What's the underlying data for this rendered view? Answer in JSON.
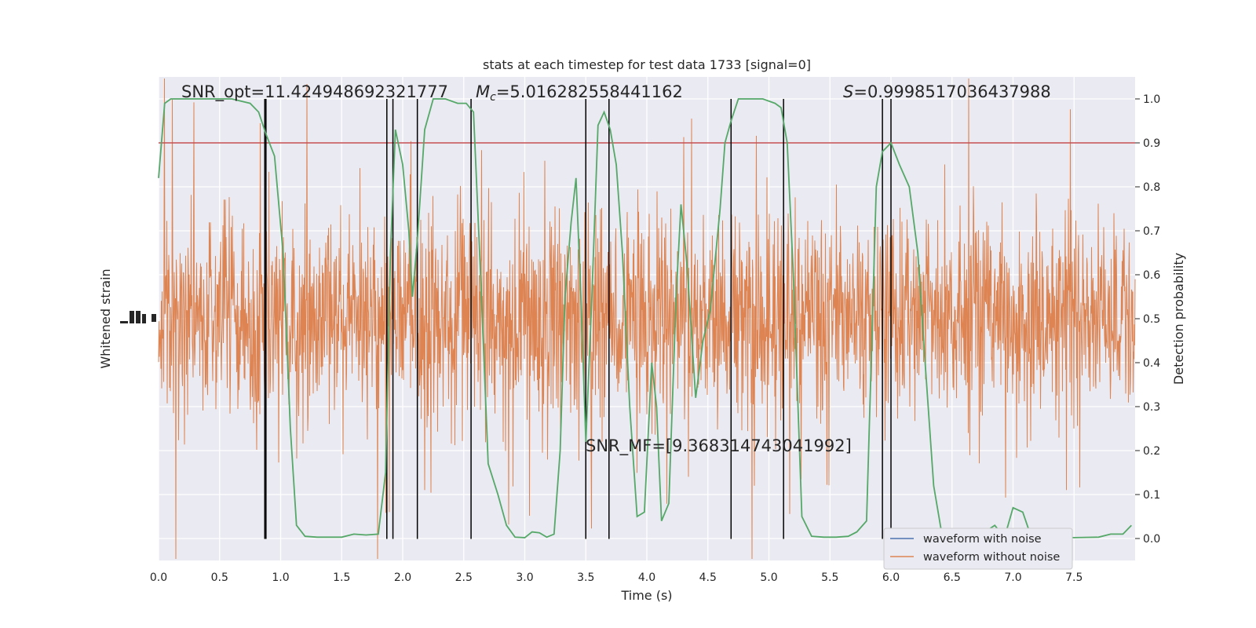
{
  "chart_data": {
    "type": "line",
    "title": "stats at each timestep for test data 1733 [signal=0]",
    "xlabel": "Time (s)",
    "ylabel_left": "Whitened strain",
    "ylabel_right": "Detection probability",
    "xlim": [
      0,
      8
    ],
    "ylim_right": [
      -0.05,
      1.05
    ],
    "x_ticks": [
      "0.0",
      "0.5",
      "1.0",
      "1.5",
      "2.0",
      "2.5",
      "3.0",
      "3.5",
      "4.0",
      "4.5",
      "5.0",
      "5.5",
      "6.0",
      "6.5",
      "7.0",
      "7.5"
    ],
    "y_ticks_right": [
      "0.0",
      "0.1",
      "0.2",
      "0.3",
      "0.4",
      "0.5",
      "0.6",
      "0.7",
      "0.8",
      "0.9",
      "1.0"
    ],
    "threshold": 0.9,
    "annotations": {
      "snr_opt": "SNR_opt=11.424948692321777",
      "mc_symbol": "M",
      "mc_sub": "c",
      "mc_value": "=5.016282558441162",
      "s_symbol": "S",
      "s_value": "=0.9998517036437988",
      "snr_mf": "SNR_MF=[9.368314743041992]"
    },
    "vertical_lines": [
      0.87,
      0.88,
      1.87,
      1.92,
      2.12,
      2.56,
      3.5,
      3.69,
      4.69,
      5.12,
      5.93,
      6.0
    ],
    "series": [
      {
        "name": "waveform with noise",
        "color": "#4c72b0"
      },
      {
        "name": "waveform without noise",
        "color": "#dd8452"
      }
    ],
    "probability_color": "#55a868",
    "threshold_color": "#c44e52",
    "probability": [
      [
        0.0,
        0.82
      ],
      [
        0.05,
        0.99
      ],
      [
        0.1,
        1.0
      ],
      [
        0.2,
        1.0
      ],
      [
        0.4,
        1.0
      ],
      [
        0.6,
        1.0
      ],
      [
        0.75,
        0.99
      ],
      [
        0.82,
        0.97
      ],
      [
        0.88,
        0.92
      ],
      [
        0.95,
        0.87
      ],
      [
        1.02,
        0.65
      ],
      [
        1.08,
        0.25
      ],
      [
        1.13,
        0.03
      ],
      [
        1.2,
        0.005
      ],
      [
        1.3,
        0.003
      ],
      [
        1.5,
        0.003
      ],
      [
        1.6,
        0.01
      ],
      [
        1.7,
        0.008
      ],
      [
        1.8,
        0.01
      ],
      [
        1.86,
        0.15
      ],
      [
        1.9,
        0.65
      ],
      [
        1.94,
        0.93
      ],
      [
        2.0,
        0.85
      ],
      [
        2.05,
        0.7
      ],
      [
        2.08,
        0.55
      ],
      [
        2.12,
        0.68
      ],
      [
        2.18,
        0.93
      ],
      [
        2.25,
        1.0
      ],
      [
        2.35,
        1.0
      ],
      [
        2.45,
        0.99
      ],
      [
        2.52,
        0.99
      ],
      [
        2.58,
        0.97
      ],
      [
        2.63,
        0.65
      ],
      [
        2.7,
        0.17
      ],
      [
        2.78,
        0.1
      ],
      [
        2.85,
        0.03
      ],
      [
        2.92,
        0.003
      ],
      [
        3.0,
        0.002
      ],
      [
        3.06,
        0.015
      ],
      [
        3.12,
        0.013
      ],
      [
        3.18,
        0.003
      ],
      [
        3.24,
        0.01
      ],
      [
        3.29,
        0.2
      ],
      [
        3.33,
        0.55
      ],
      [
        3.38,
        0.72
      ],
      [
        3.42,
        0.82
      ],
      [
        3.46,
        0.55
      ],
      [
        3.5,
        0.22
      ],
      [
        3.55,
        0.55
      ],
      [
        3.6,
        0.94
      ],
      [
        3.65,
        0.97
      ],
      [
        3.7,
        0.93
      ],
      [
        3.75,
        0.85
      ],
      [
        3.8,
        0.65
      ],
      [
        3.86,
        0.3
      ],
      [
        3.92,
        0.05
      ],
      [
        3.98,
        0.06
      ],
      [
        4.04,
        0.4
      ],
      [
        4.08,
        0.3
      ],
      [
        4.12,
        0.04
      ],
      [
        4.18,
        0.08
      ],
      [
        4.24,
        0.55
      ],
      [
        4.28,
        0.76
      ],
      [
        4.33,
        0.62
      ],
      [
        4.4,
        0.32
      ],
      [
        4.46,
        0.45
      ],
      [
        4.52,
        0.52
      ],
      [
        4.6,
        0.75
      ],
      [
        4.64,
        0.9
      ],
      [
        4.69,
        0.95
      ],
      [
        4.75,
        1.0
      ],
      [
        4.85,
        1.0
      ],
      [
        4.95,
        1.0
      ],
      [
        5.05,
        0.99
      ],
      [
        5.1,
        0.98
      ],
      [
        5.15,
        0.9
      ],
      [
        5.2,
        0.6
      ],
      [
        5.27,
        0.05
      ],
      [
        5.35,
        0.005
      ],
      [
        5.45,
        0.003
      ],
      [
        5.55,
        0.003
      ],
      [
        5.65,
        0.005
      ],
      [
        5.72,
        0.015
      ],
      [
        5.8,
        0.04
      ],
      [
        5.88,
        0.8
      ],
      [
        5.93,
        0.88
      ],
      [
        6.0,
        0.9
      ],
      [
        6.07,
        0.85
      ],
      [
        6.15,
        0.8
      ],
      [
        6.22,
        0.65
      ],
      [
        6.28,
        0.4
      ],
      [
        6.35,
        0.12
      ],
      [
        6.42,
        0.005
      ],
      [
        6.55,
        0.003
      ],
      [
        6.7,
        0.002
      ],
      [
        6.85,
        0.03
      ],
      [
        6.93,
        0.002
      ],
      [
        7.0,
        0.07
      ],
      [
        7.08,
        0.06
      ],
      [
        7.15,
        0.003
      ],
      [
        7.3,
        0.003
      ],
      [
        7.5,
        0.002
      ],
      [
        7.7,
        0.003
      ],
      [
        7.8,
        0.01
      ],
      [
        7.9,
        0.01
      ],
      [
        7.97,
        0.03
      ]
    ]
  }
}
